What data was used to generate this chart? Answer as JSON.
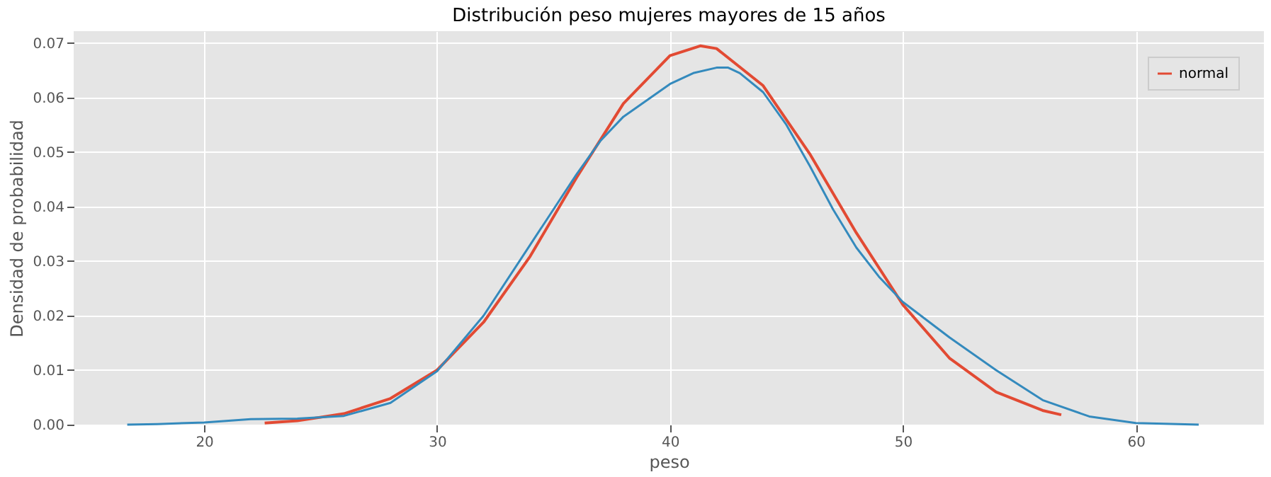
{
  "chart_data": {
    "type": "line",
    "title": "Distribución peso mujeres mayores de 15 años",
    "xlabel": "peso",
    "ylabel": "Densidad de probabilidad",
    "series": [
      {
        "name": "normal",
        "color": "#e24a33",
        "x": [
          22.6,
          24,
          26,
          28,
          30,
          32,
          34,
          36,
          38,
          40,
          41.3,
          42,
          44,
          46,
          48,
          50,
          52,
          54,
          56,
          56.8
        ],
        "values": [
          0.0003,
          0.0007,
          0.002,
          0.0048,
          0.01,
          0.0188,
          0.0309,
          0.0454,
          0.0589,
          0.0677,
          0.0695,
          0.069,
          0.0622,
          0.0497,
          0.0352,
          0.022,
          0.0122,
          0.006,
          0.0026,
          0.0018
        ]
      },
      {
        "color": "#348abd",
        "x": [
          16.7,
          18,
          20,
          22,
          24,
          26,
          28,
          30,
          32,
          34,
          36,
          37,
          38,
          40,
          41,
          42,
          42.5,
          43,
          44,
          45,
          46,
          47,
          48,
          49,
          50,
          52,
          54,
          56,
          58,
          60,
          62.7
        ],
        "values": [
          0.0,
          0.0001,
          0.0004,
          0.001,
          0.0011,
          0.0016,
          0.004,
          0.0098,
          0.02,
          0.033,
          0.046,
          0.052,
          0.0565,
          0.0625,
          0.0645,
          0.0655,
          0.0655,
          0.0645,
          0.061,
          0.055,
          0.0475,
          0.0395,
          0.0325,
          0.027,
          0.0225,
          0.016,
          0.01,
          0.0045,
          0.0015,
          0.0003,
          0.0
        ]
      }
    ],
    "xlim": [
      14.4,
      65.5
    ],
    "xticks": [
      20,
      30,
      40,
      50,
      60
    ],
    "ylim": [
      0,
      0.0722
    ],
    "yticks": [
      {
        "value": 0,
        "label": "0.00"
      },
      {
        "value": 0.01,
        "label": "0.01"
      },
      {
        "value": 0.02,
        "label": "0.02"
      },
      {
        "value": 0.03,
        "label": "0.03"
      },
      {
        "value": 0.04,
        "label": "0.04"
      },
      {
        "value": 0.05,
        "label": "0.05"
      },
      {
        "value": 0.06,
        "label": "0.06"
      },
      {
        "value": 0.07,
        "label": "0.07"
      }
    ],
    "grid": true,
    "legend": "top right",
    "marker": "none",
    "line_style": "solid"
  }
}
